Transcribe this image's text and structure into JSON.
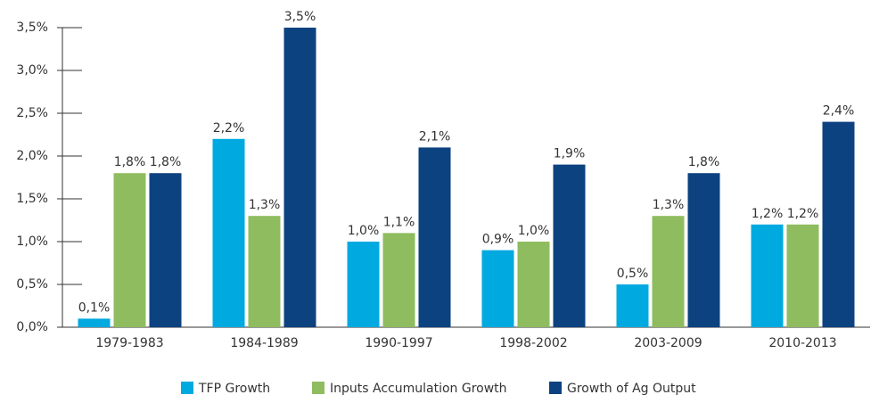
{
  "chart_data": {
    "type": "bar",
    "categories": [
      "1979-1983",
      "1984-1989",
      "1990-1997",
      "1998-2002",
      "2003-2009",
      "2010-2013"
    ],
    "series": [
      {
        "name": "TFP Growth",
        "color": "#00a9e0",
        "values": [
          0.1,
          2.2,
          1.0,
          0.9,
          0.5,
          1.2
        ],
        "value_labels": [
          "0,1%",
          "2,2%",
          "1,0%",
          "0,9%",
          "0,5%",
          "1,2%"
        ]
      },
      {
        "name": "Inputs Accumulation Growth",
        "color": "#8fbc5f",
        "values": [
          1.8,
          1.3,
          1.1,
          1.0,
          1.3,
          1.2
        ],
        "value_labels": [
          "1,8%",
          "1,3%",
          "1,1%",
          "1,0%",
          "1,3%",
          "1,2%"
        ]
      },
      {
        "name": "Growth of Ag Output",
        "color": "#0d4280",
        "values": [
          1.8,
          3.5,
          2.1,
          1.9,
          1.8,
          2.4
        ],
        "value_labels": [
          "1,8%",
          "3,5%",
          "2,1%",
          "1,9%",
          "1,8%",
          "2,4%"
        ]
      }
    ],
    "ylim": [
      0,
      3.5
    ],
    "yticks": [
      {
        "value": 0,
        "label": "0,0%"
      },
      {
        "value": 0.5,
        "label": "0,5%"
      },
      {
        "value": 1.0,
        "label": "1,0%"
      },
      {
        "value": 1.5,
        "label": "1,5%"
      },
      {
        "value": 2.0,
        "label": "2,0%"
      },
      {
        "value": 2.5,
        "label": "2,5%"
      },
      {
        "value": 3.0,
        "label": "3,0%"
      },
      {
        "value": 3.5,
        "label": "3,5%"
      }
    ],
    "legend": "bottom"
  }
}
